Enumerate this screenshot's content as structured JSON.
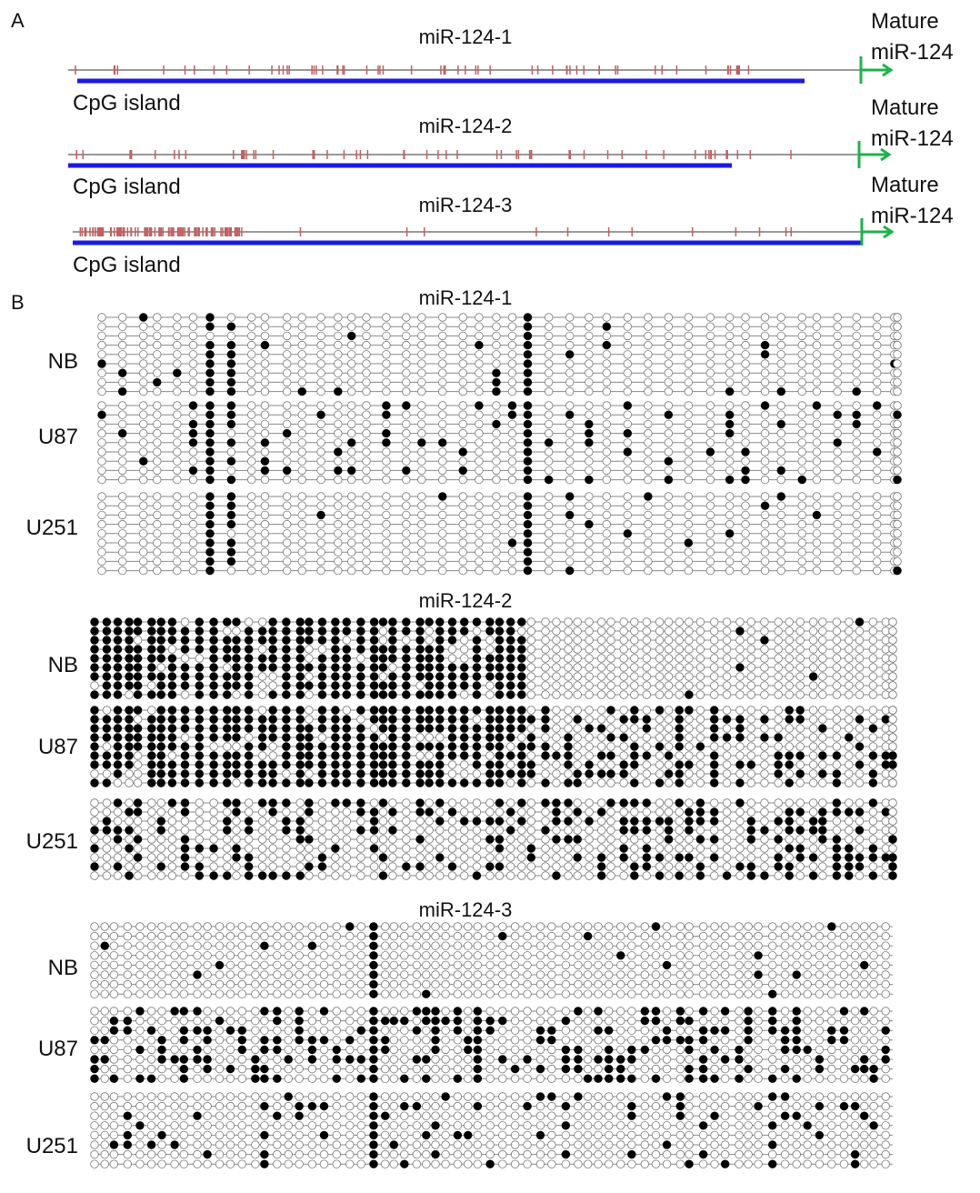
{
  "panel_a": {
    "label": "A",
    "genes": [
      {
        "name": "miR-124-1",
        "cpg_label": "CpG island",
        "mature_label": [
          "Mature",
          "miR-124"
        ]
      },
      {
        "name": "miR-124-2",
        "cpg_label": "CpG island",
        "mature_label": [
          "Mature",
          "miR-124"
        ]
      },
      {
        "name": "miR-124-3",
        "cpg_label": "CpG island",
        "mature_label": [
          "Mature",
          "miR-124"
        ]
      }
    ]
  },
  "panel_b": {
    "label": "B",
    "blocks": [
      {
        "name": "miR-124-1",
        "groups": [
          "NB",
          "U87",
          "U251"
        ]
      },
      {
        "name": "miR-124-2",
        "groups": [
          "NB",
          "U87",
          "U251"
        ]
      },
      {
        "name": "miR-124-3",
        "groups": [
          "NB",
          "U87",
          "U251"
        ]
      }
    ]
  }
}
